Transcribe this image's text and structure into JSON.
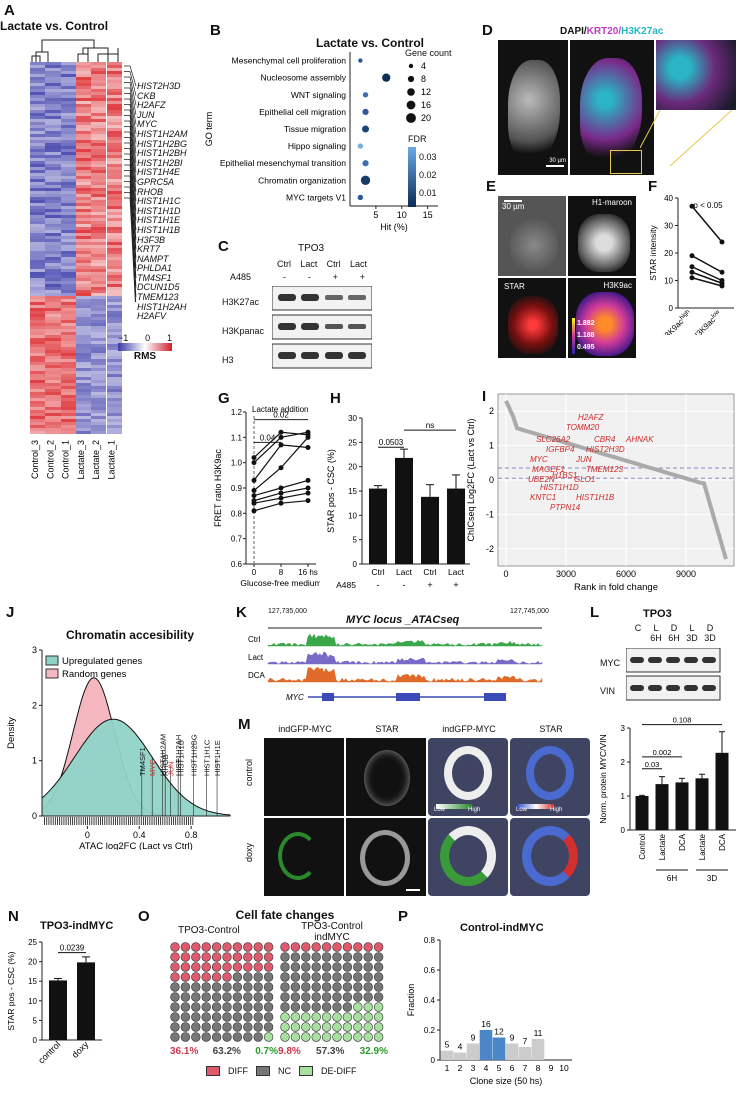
{
  "panels": {
    "A": {
      "label": "A",
      "title": "Lactate vs. Control",
      "genes": [
        "HIST2H3D",
        "CKB",
        "H2AFZ",
        "JUN",
        "MYC",
        "HIST1H2AM",
        "HIST1H2BG",
        "HIST1H2BH",
        "HIST1H2BI",
        "HIST1H4E",
        "GPRC5A",
        "RHOB",
        "HIST1H1C",
        "HIST1H1D",
        "HIST1H1E",
        "HIST1H1B",
        "H3F3B",
        "KRT7",
        "NAMPT",
        "PHLDA1",
        "TM4SF1",
        "DCUN1D5",
        "TMEM123",
        "HIST1H2AH",
        "H2AFV"
      ],
      "columns": [
        "Control_3",
        "Control_2",
        "Control_1",
        "Lactate_3",
        "Lactate_2",
        "Lactate_1"
      ],
      "legend_ticks": [
        "−1",
        "0",
        "1"
      ],
      "legend_label": "RMS"
    },
    "B": {
      "label": "B",
      "title": "Lactate vs. Control",
      "ylabel": "GO term",
      "xlabel": "Hit (%)",
      "size_legend_title": "Gene count",
      "size_legend": [
        "4",
        "8",
        "12",
        "16",
        "20"
      ],
      "fdr_title": "FDR",
      "fdr_ticks": [
        "0.03",
        "0.02",
        "0.01"
      ]
    },
    "C": {
      "label": "C",
      "title": "TPO3",
      "cols": [
        "Ctrl",
        "Lact",
        "Ctrl",
        "Lact"
      ],
      "a485_label": "A485",
      "a485": [
        "-",
        "-",
        "+",
        "+"
      ],
      "rows": [
        "H3K27ac",
        "H3Kpanac",
        "H3"
      ]
    },
    "D": {
      "label": "D",
      "stain_dapi": "DAPI/",
      "stain_krt": "KRT20/",
      "stain_h3": "H3K27ac",
      "scale": "30 µm"
    },
    "E": {
      "label": "E",
      "scale": "30 µm",
      "ch_h1": "H1-maroon",
      "ch_star": "STAR",
      "ch_h3": "H3K9ac",
      "vals": [
        "1.882",
        "1.188",
        "0.495"
      ]
    },
    "F": {
      "label": "F",
      "ylabel": "STAR intensity",
      "pval": "p < 0.05",
      "xcat": [
        "H3K9ac",
        "H3K9ac"
      ],
      "xsup": [
        "high",
        "low"
      ]
    },
    "G": {
      "label": "G",
      "ylabel": "FRET ratio H3K9ac",
      "xlabel": "Glucose-free medium",
      "event": "Lactate addition",
      "pvals": [
        "0.04",
        "0.02"
      ]
    },
    "H": {
      "label": "H",
      "ylabel": "STAR pos - CSC (%)",
      "pvals": [
        "0.0503",
        "ns"
      ],
      "cats": [
        "Ctrl",
        "Lact",
        "Ctrl",
        "Lact"
      ],
      "a485_label": "A485",
      "a485": [
        "-",
        "-",
        "+",
        "+"
      ]
    },
    "I": {
      "label": "I",
      "ylabel": "ChICseq Log2FC (Lact vs Ctrl)",
      "xlabel": "Rank in fold change",
      "red_genes": [
        "H2AFZ",
        "TOMM20",
        "SLC26A2",
        "CBR4",
        "AHNAK",
        "IGFBP4",
        "HIST2H3D",
        "MYC",
        "JUN",
        "MAGEF1",
        "TMEM123",
        "UBE2N",
        "H1BS1",
        "GLO1",
        "HIST1H1D",
        "HIST1H1B",
        "KNTC1",
        "PTPN14"
      ]
    },
    "J": {
      "label": "J",
      "title": "Chromatin accesibility",
      "legend": [
        "Upregulated genes",
        "Random genes"
      ],
      "ylabel": "Density",
      "xlabel": "ATAC log2FC (Lact vs Ctrl)",
      "genes": [
        "TM4SF1",
        "MYC",
        "HIST1H2AM",
        "RHOB",
        "JUN",
        "HIST1H2AH",
        "HIST1H1B",
        "HIST1H2BG",
        "HIST1H1C",
        "HIST1H1E"
      ]
    },
    "K": {
      "label": "K",
      "title": "MYC locus _ATACseq",
      "coord_left": "127,735,000",
      "coord_right": "127,745,000",
      "tracks": [
        "Ctrl",
        "Lact",
        "DCA"
      ],
      "gene": "MYC"
    },
    "L": {
      "label": "L",
      "title": "TPO3",
      "top_cols": [
        "C",
        "L",
        "D",
        "L",
        "D"
      ],
      "top_sub": [
        "",
        "6H",
        "6H",
        "3D",
        "3D"
      ],
      "rows": [
        "MYC",
        "VIN"
      ],
      "ylabel": "Norm. protein MYC/VIN",
      "cats": [
        "Control",
        "Lactate",
        "DCA",
        "Lactate",
        "DCA"
      ],
      "groups": [
        "6H",
        "3D"
      ],
      "pvals": [
        "0.03",
        "0.002",
        "0.108"
      ]
    },
    "M": {
      "label": "M",
      "cols": [
        "indGFP-MYC",
        "STAR",
        "indGFP-MYC",
        "STAR"
      ],
      "rows": [
        "control",
        "doxy"
      ],
      "low": "Low",
      "high": "High"
    },
    "N": {
      "label": "N",
      "title": "TPO3-indMYC",
      "ylabel": "STAR pos - CSC (%)",
      "pval": "0.0239",
      "cats": [
        "control",
        "doxy"
      ]
    },
    "O": {
      "label": "O",
      "title": "Cell fate changes",
      "group1": "TPO3-Control",
      "group2a": "TPO3-Control",
      "group2b": "indMYC",
      "pct1": [
        "36.1%",
        "63.2%",
        "0.7%"
      ],
      "pct2": [
        "9.8%",
        "57.3%",
        "32.9%"
      ],
      "legend": [
        "DIFF",
        "NC",
        "DE-DIFF"
      ]
    },
    "P": {
      "label": "P",
      "title": "Control-indMYC",
      "ylabel": "Fraction",
      "xlabel": "Clone size (50 hs)",
      "bar_labels": [
        "5",
        "4",
        "9",
        "16",
        "12",
        "9",
        "7",
        "11"
      ]
    }
  },
  "colors": {
    "red": "#e05a6e",
    "grey": "#777777",
    "green": "#a8e0a0",
    "teal": "#8fd3c7",
    "pink": "#f6b8c0",
    "blue": "#4a86c8",
    "lightgrey": "#cccccc"
  },
  "chart_data": [
    {
      "type": "scatter",
      "panel": "B",
      "categories": [
        "Mesenchymal cell proliferation",
        "Nucleosome assembly",
        "WNT signaling",
        "Epithelial cell migration",
        "Tissue migration",
        "Hippo signaling",
        "Epithelial mesenchymal transition",
        "Chromatin organization",
        "MYC targets V1"
      ],
      "x": [
        2,
        7,
        3,
        3,
        3,
        2,
        3,
        3,
        2
      ],
      "size": [
        4,
        14,
        6,
        8,
        10,
        6,
        8,
        18,
        6
      ],
      "xlim": [
        0,
        17
      ],
      "xticks": [
        5,
        10,
        15
      ],
      "xlabel": "Hit (%)",
      "ylabel": "GO term"
    },
    {
      "type": "line",
      "panel": "F",
      "x": [
        "high",
        "low"
      ],
      "series": [
        {
          "values": [
            37,
            24
          ]
        },
        {
          "values": [
            19,
            13
          ]
        },
        {
          "values": [
            15,
            10
          ]
        },
        {
          "values": [
            13,
            9
          ]
        },
        {
          "values": [
            11,
            8
          ]
        }
      ],
      "ylim": [
        0,
        40
      ],
      "yticks": [
        0,
        10,
        20,
        30,
        40
      ],
      "ylabel": "STAR intensity"
    },
    {
      "type": "line",
      "panel": "G",
      "x": [
        0,
        8,
        16
      ],
      "series": [
        {
          "values": [
            1.02,
            1.12,
            1.11
          ]
        },
        {
          "values": [
            1.0,
            1.1,
            1.12
          ]
        },
        {
          "values": [
            0.93,
            1.07,
            1.06
          ]
        },
        {
          "values": [
            0.89,
            0.98,
            1.1
          ]
        },
        {
          "values": [
            0.87,
            0.9,
            0.93
          ]
        },
        {
          "values": [
            0.85,
            0.88,
            0.9
          ]
        },
        {
          "values": [
            0.84,
            0.86,
            0.88
          ]
        },
        {
          "values": [
            0.81,
            0.84,
            0.85
          ]
        }
      ],
      "ylim": [
        0.6,
        1.2
      ],
      "yticks": [
        0.6,
        0.7,
        0.8,
        0.9,
        1.0,
        1.1,
        1.2
      ],
      "xticks": [
        0,
        8,
        16
      ],
      "xtick_labels": [
        "0",
        "8",
        "16 hs"
      ],
      "ylabel": "FRET ratio H3K9ac",
      "xlabel": "Glucose-free medium"
    },
    {
      "type": "bar",
      "panel": "H",
      "categories": [
        "Ctrl",
        "Lact",
        "Ctrl",
        "Lact"
      ],
      "values": [
        15.5,
        21.8,
        13.8,
        15.5
      ],
      "errors": [
        0.6,
        1.8,
        2.5,
        2.8
      ],
      "ylim": [
        0,
        30
      ],
      "yticks": [
        0,
        5,
        10,
        15,
        20,
        25,
        30
      ],
      "ylabel": "STAR pos - CSC (%)"
    },
    {
      "type": "line",
      "panel": "I",
      "xlim": [
        0,
        11000
      ],
      "ylim": [
        -2.5,
        2.5
      ],
      "xticks": [
        0,
        3000,
        6000,
        9000
      ],
      "yticks": [
        -2,
        -1,
        0,
        1,
        2
      ],
      "ylabel": "ChICseq Log2FC (Lact vs Ctrl)",
      "xlabel": "Rank in fold change"
    },
    {
      "type": "area",
      "panel": "J",
      "series": [
        {
          "name": "Upregulated genes"
        },
        {
          "name": "Random genes"
        }
      ],
      "xlim": [
        -0.35,
        1.1
      ],
      "ylim": [
        0,
        3
      ],
      "xticks": [
        0,
        0.4,
        0.8
      ],
      "yticks": [
        0,
        1,
        2,
        3
      ],
      "ylabel": "Density",
      "xlabel": "ATAC log2FC (Lact vs Ctrl)"
    },
    {
      "type": "bar",
      "panel": "L",
      "categories": [
        "Control",
        "Lactate",
        "DCA",
        "Lactate",
        "DCA"
      ],
      "values": [
        1.0,
        1.35,
        1.4,
        1.52,
        2.27
      ],
      "errors": [
        0.02,
        0.22,
        0.12,
        0.12,
        0.62
      ],
      "ylim": [
        0,
        3
      ],
      "yticks": [
        0,
        1,
        2,
        3
      ],
      "ylabel": "Norm. protein MYC/VIN"
    },
    {
      "type": "bar",
      "panel": "N",
      "categories": [
        "control",
        "doxy"
      ],
      "values": [
        15.2,
        19.8
      ],
      "errors": [
        0.5,
        1.4
      ],
      "ylim": [
        0,
        25
      ],
      "yticks": [
        0,
        5,
        10,
        15,
        20,
        25
      ],
      "ylabel": "STAR pos - CSC (%)"
    },
    {
      "type": "bar",
      "panel": "P",
      "categories": [
        "1",
        "2",
        "3",
        "4",
        "5",
        "6",
        "7",
        "8",
        "9",
        "10"
      ],
      "values": [
        0.062,
        0.05,
        0.11,
        0.2,
        0.15,
        0.11,
        0.087,
        0.14,
        0,
        0
      ],
      "ylim": [
        0,
        0.8
      ],
      "yticks": [
        0,
        0.2,
        0.4,
        0.6,
        0.8
      ],
      "ylabel": "Fraction",
      "xlabel": "Clone size (50 hs)"
    }
  ]
}
